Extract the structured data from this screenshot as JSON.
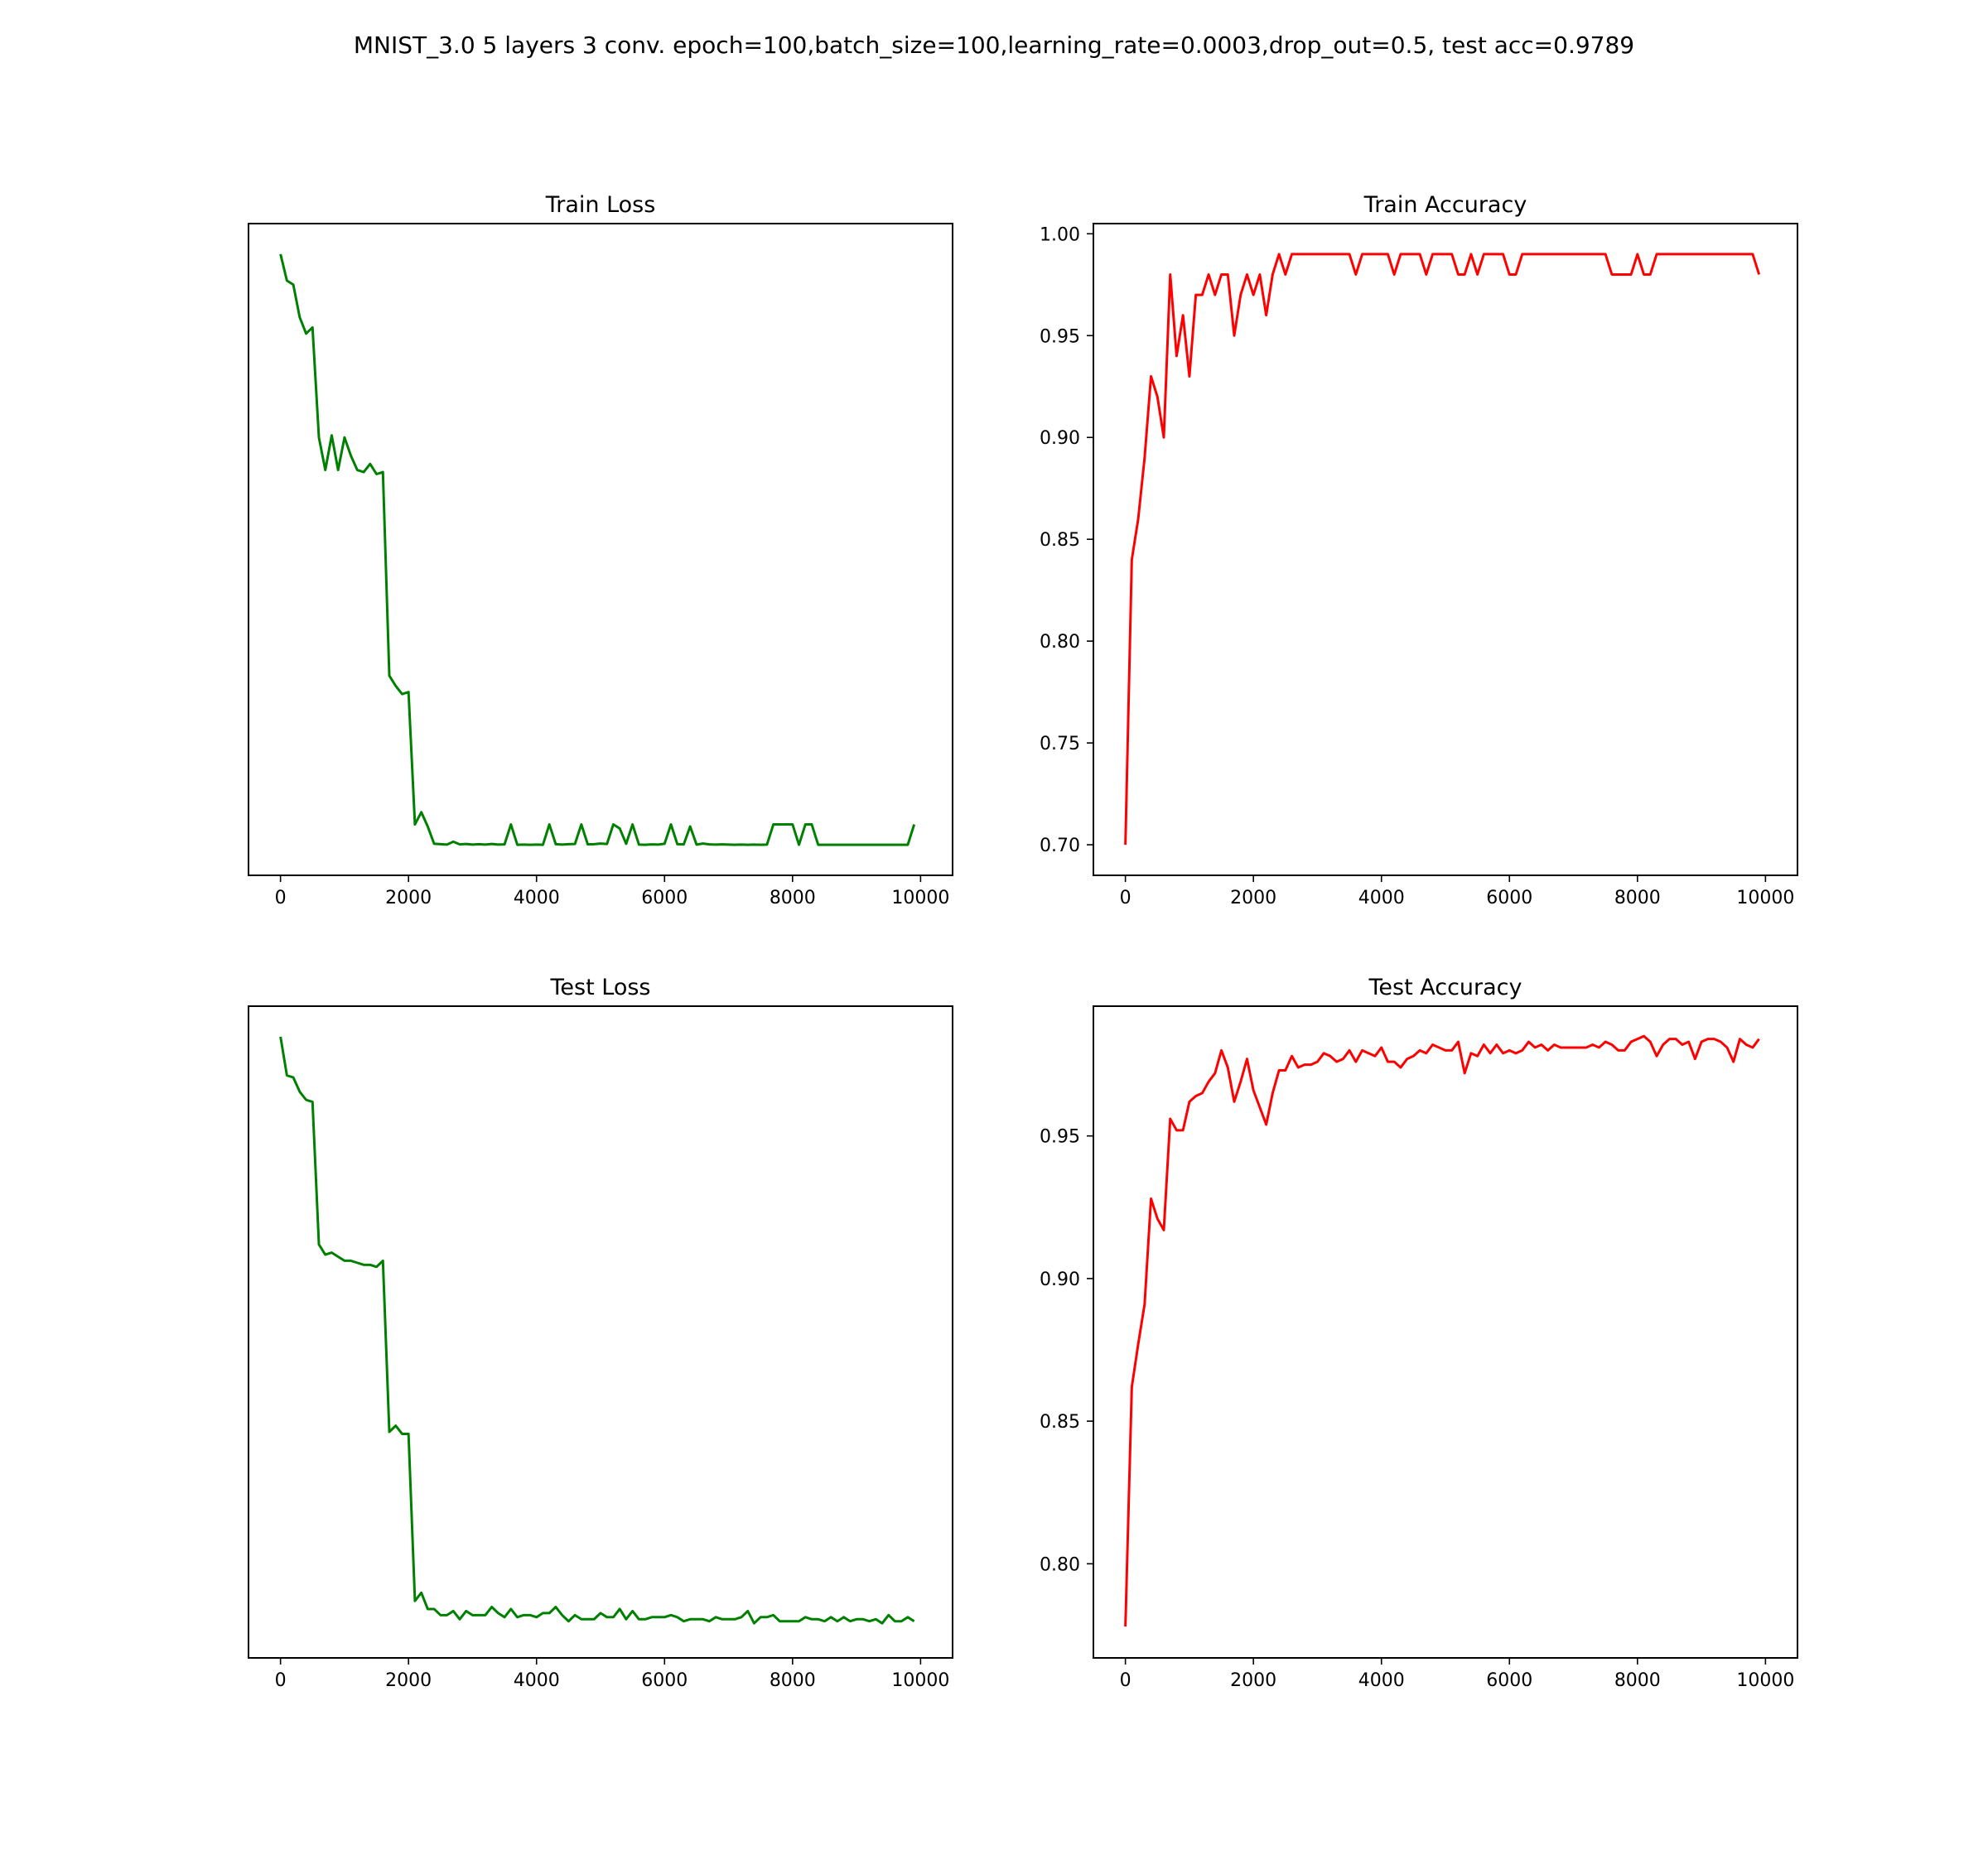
{
  "figure": {
    "suptitle": "MNIST_3.0 5 layers 3 conv. epoch=100,batch_size=100,learning_rate=0.0003,drop_out=0.5, test acc=0.9789"
  },
  "chart_data": [
    {
      "type": "line",
      "title": "Train Loss",
      "xlabel": "",
      "ylabel": "",
      "color": "#008000",
      "xlim": [
        -500,
        10500
      ],
      "ylim": [
        -0.015,
        0.305
      ],
      "xticks": [
        0,
        2000,
        4000,
        6000,
        8000,
        10000
      ],
      "yticks": [],
      "grid": false,
      "x": [
        0,
        100,
        200,
        300,
        400,
        500,
        600,
        700,
        800,
        900,
        1000,
        1100,
        1200,
        1300,
        1400,
        1500,
        1600,
        1700,
        1800,
        1900,
        2000,
        2100,
        2200,
        2300,
        2400,
        2500,
        2600,
        2700,
        2800,
        2900,
        3000,
        3100,
        3200,
        3300,
        3400,
        3500,
        3600,
        3700,
        3800,
        3900,
        4000,
        4100,
        4200,
        4300,
        4400,
        4500,
        4600,
        4700,
        4800,
        4900,
        5000,
        5100,
        5200,
        5300,
        5400,
        5500,
        5600,
        5700,
        5800,
        5900,
        6000,
        6100,
        6200,
        6300,
        6400,
        6500,
        6600,
        6700,
        6800,
        6900,
        7000,
        7100,
        7200,
        7300,
        7400,
        7500,
        7600,
        7700,
        7800,
        7900,
        8000,
        8100,
        8200,
        8300,
        8400,
        8500,
        8600,
        8700,
        8800,
        8900,
        9000,
        9100,
        9200,
        9300,
        9400,
        9500,
        9600,
        9700,
        9800,
        9900
      ],
      "values": [
        0.29,
        0.277,
        0.275,
        0.259,
        0.251,
        0.254,
        0.2,
        0.184,
        0.201,
        0.184,
        0.2,
        0.191,
        0.184,
        0.183,
        0.187,
        0.182,
        0.183,
        0.083,
        0.078,
        0.074,
        0.075,
        0.01,
        0.016,
        0.009,
        0.0005,
        0.0003,
        0.0001,
        0.0015,
        0.0002,
        0.0004,
        0.0001,
        0.0003,
        0.0001,
        0.0004,
        0.0001,
        0.0002,
        0.01,
        0.0,
        0.0001,
        0.0,
        0.0001,
        0.0,
        0.01,
        0.0003,
        0.0001,
        0.0003,
        0.0004,
        0.01,
        0.0002,
        0.0003,
        0.0006,
        0.0004,
        0.01,
        0.008,
        0.0005,
        0.01,
        0.0001,
        0.0,
        0.0002,
        0.0001,
        0.0005,
        0.01,
        0.0003,
        0.0002,
        0.009,
        0.0001,
        0.0006,
        0.0002,
        0.0001,
        0.0002,
        0.0001,
        0.0,
        0.0001,
        0.0,
        0.0001,
        0.0,
        0.0001,
        0.01,
        0.01,
        0.01,
        0.01,
        0.0,
        0.01,
        0.01,
        0.0,
        0.0,
        0.0,
        0.0,
        0.0,
        0.0,
        0.0,
        0.0,
        0.0,
        0.0,
        0.0,
        0.0,
        0.0,
        0.0,
        0.0,
        0.01
      ]
    },
    {
      "type": "line",
      "title": "Train Accuracy",
      "xlabel": "",
      "ylabel": "",
      "color": "#ff0000",
      "xlim": [
        -500,
        10500
      ],
      "ylim": [
        0.685,
        1.005
      ],
      "xticks": [
        0,
        2000,
        4000,
        6000,
        8000,
        10000
      ],
      "yticks": [
        0.7,
        0.75,
        0.8,
        0.85,
        0.9,
        0.95,
        1.0
      ],
      "ytick_labels": [
        "0.70",
        "0.75",
        "0.80",
        "0.85",
        "0.90",
        "0.95",
        "1.00"
      ],
      "grid": false,
      "x": [
        0,
        100,
        200,
        300,
        400,
        500,
        600,
        700,
        800,
        900,
        1000,
        1100,
        1200,
        1300,
        1400,
        1500,
        1600,
        1700,
        1800,
        1900,
        2000,
        2100,
        2200,
        2300,
        2400,
        2500,
        2600,
        2700,
        2800,
        2900,
        3000,
        3100,
        3200,
        3300,
        3400,
        3500,
        3600,
        3700,
        3800,
        3900,
        4000,
        4100,
        4200,
        4300,
        4400,
        4500,
        4600,
        4700,
        4800,
        4900,
        5000,
        5100,
        5200,
        5300,
        5400,
        5500,
        5600,
        5700,
        5800,
        5900,
        6000,
        6100,
        6200,
        6300,
        6400,
        6500,
        6600,
        6700,
        6800,
        6900,
        7000,
        7100,
        7200,
        7300,
        7400,
        7500,
        7600,
        7700,
        7800,
        7900,
        8000,
        8100,
        8200,
        8300,
        8400,
        8500,
        8600,
        8700,
        8800,
        8900,
        9000,
        9100,
        9200,
        9300,
        9400,
        9500,
        9600,
        9700,
        9800,
        9900
      ],
      "values": [
        0.7,
        0.84,
        0.86,
        0.89,
        0.93,
        0.92,
        0.9,
        0.98,
        0.94,
        0.96,
        0.93,
        0.97,
        0.97,
        0.98,
        0.97,
        0.98,
        0.98,
        0.95,
        0.97,
        0.98,
        0.97,
        0.98,
        0.96,
        0.98,
        0.99,
        0.98,
        0.99,
        0.99,
        0.99,
        0.99,
        0.99,
        0.99,
        0.99,
        0.99,
        0.99,
        0.99,
        0.98,
        0.99,
        0.99,
        0.99,
        0.99,
        0.99,
        0.98,
        0.99,
        0.99,
        0.99,
        0.99,
        0.98,
        0.99,
        0.99,
        0.99,
        0.99,
        0.98,
        0.98,
        0.99,
        0.98,
        0.99,
        0.99,
        0.99,
        0.99,
        0.98,
        0.98,
        0.99,
        0.99,
        0.99,
        0.99,
        0.99,
        0.99,
        0.99,
        0.99,
        0.99,
        0.99,
        0.99,
        0.99,
        0.99,
        0.99,
        0.98,
        0.98,
        0.98,
        0.98,
        0.99,
        0.98,
        0.98,
        0.99,
        0.99,
        0.99,
        0.99,
        0.99,
        0.99,
        0.99,
        0.99,
        0.99,
        0.99,
        0.99,
        0.99,
        0.99,
        0.99,
        0.99,
        0.99,
        0.98
      ]
    },
    {
      "type": "line",
      "title": "Test Loss",
      "xlabel": "",
      "ylabel": "",
      "color": "#008000",
      "xlim": [
        -500,
        10500
      ],
      "ylim": [
        -0.015,
        0.305
      ],
      "xticks": [
        0,
        2000,
        4000,
        6000,
        8000,
        10000
      ],
      "yticks": [],
      "grid": false,
      "x": [
        0,
        100,
        200,
        300,
        400,
        500,
        600,
        700,
        800,
        900,
        1000,
        1100,
        1200,
        1300,
        1400,
        1500,
        1600,
        1700,
        1800,
        1900,
        2000,
        2100,
        2200,
        2300,
        2400,
        2500,
        2600,
        2700,
        2800,
        2900,
        3000,
        3100,
        3200,
        3300,
        3400,
        3500,
        3600,
        3700,
        3800,
        3900,
        4000,
        4100,
        4200,
        4300,
        4400,
        4500,
        4600,
        4700,
        4800,
        4900,
        5000,
        5100,
        5200,
        5300,
        5400,
        5500,
        5600,
        5700,
        5800,
        5900,
        6000,
        6100,
        6200,
        6300,
        6400,
        6500,
        6600,
        6700,
        6800,
        6900,
        7000,
        7100,
        7200,
        7300,
        7400,
        7500,
        7600,
        7700,
        7800,
        7900,
        8000,
        8100,
        8200,
        8300,
        8400,
        8500,
        8600,
        8700,
        8800,
        8900,
        9000,
        9100,
        9200,
        9300,
        9400,
        9500,
        9600,
        9700,
        9800,
        9900
      ],
      "values": [
        0.29,
        0.271,
        0.27,
        0.263,
        0.259,
        0.258,
        0.188,
        0.183,
        0.184,
        0.182,
        0.18,
        0.18,
        0.179,
        0.178,
        0.178,
        0.177,
        0.18,
        0.096,
        0.099,
        0.095,
        0.095,
        0.013,
        0.017,
        0.009,
        0.009,
        0.006,
        0.006,
        0.008,
        0.004,
        0.008,
        0.006,
        0.006,
        0.006,
        0.01,
        0.007,
        0.005,
        0.009,
        0.005,
        0.006,
        0.006,
        0.005,
        0.007,
        0.007,
        0.01,
        0.006,
        0.003,
        0.006,
        0.004,
        0.004,
        0.004,
        0.007,
        0.005,
        0.005,
        0.009,
        0.004,
        0.008,
        0.004,
        0.004,
        0.005,
        0.005,
        0.005,
        0.006,
        0.005,
        0.003,
        0.004,
        0.004,
        0.004,
        0.003,
        0.005,
        0.004,
        0.004,
        0.004,
        0.005,
        0.008,
        0.002,
        0.005,
        0.005,
        0.006,
        0.003,
        0.003,
        0.003,
        0.003,
        0.005,
        0.004,
        0.004,
        0.003,
        0.005,
        0.003,
        0.005,
        0.003,
        0.004,
        0.004,
        0.003,
        0.004,
        0.002,
        0.006,
        0.003,
        0.003,
        0.005,
        0.003
      ]
    },
    {
      "type": "line",
      "title": "Test Accuracy",
      "xlabel": "",
      "ylabel": "",
      "color": "#ff0000",
      "xlim": [
        -500,
        10500
      ],
      "ylim": [
        0.767,
        0.9955
      ],
      "xticks": [
        0,
        2000,
        4000,
        6000,
        8000,
        10000
      ],
      "yticks": [
        0.8,
        0.85,
        0.9,
        0.95
      ],
      "ytick_labels": [
        "0.80",
        "0.85",
        "0.90",
        "0.95"
      ],
      "grid": false,
      "x": [
        0,
        100,
        200,
        300,
        400,
        500,
        600,
        700,
        800,
        900,
        1000,
        1100,
        1200,
        1300,
        1400,
        1500,
        1600,
        1700,
        1800,
        1900,
        2000,
        2100,
        2200,
        2300,
        2400,
        2500,
        2600,
        2700,
        2800,
        2900,
        3000,
        3100,
        3200,
        3300,
        3400,
        3500,
        3600,
        3700,
        3800,
        3900,
        4000,
        4100,
        4200,
        4300,
        4400,
        4500,
        4600,
        4700,
        4800,
        4900,
        5000,
        5100,
        5200,
        5300,
        5400,
        5500,
        5600,
        5700,
        5800,
        5900,
        6000,
        6100,
        6200,
        6300,
        6400,
        6500,
        6600,
        6700,
        6800,
        6900,
        7000,
        7100,
        7200,
        7300,
        7400,
        7500,
        7600,
        7700,
        7800,
        7900,
        8000,
        8100,
        8200,
        8300,
        8400,
        8500,
        8600,
        8700,
        8800,
        8900,
        9000,
        9100,
        9200,
        9300,
        9400,
        9500,
        9600,
        9700,
        9800,
        9900
      ],
      "values": [
        0.778,
        0.862,
        0.877,
        0.891,
        0.928,
        0.921,
        0.917,
        0.956,
        0.952,
        0.952,
        0.962,
        0.964,
        0.965,
        0.969,
        0.972,
        0.98,
        0.974,
        0.962,
        0.969,
        0.977,
        0.966,
        0.96,
        0.954,
        0.965,
        0.973,
        0.973,
        0.978,
        0.974,
        0.975,
        0.975,
        0.976,
        0.979,
        0.978,
        0.976,
        0.977,
        0.98,
        0.976,
        0.98,
        0.979,
        0.978,
        0.981,
        0.976,
        0.976,
        0.974,
        0.977,
        0.978,
        0.98,
        0.979,
        0.982,
        0.981,
        0.98,
        0.98,
        0.983,
        0.972,
        0.979,
        0.978,
        0.982,
        0.979,
        0.982,
        0.979,
        0.98,
        0.979,
        0.98,
        0.983,
        0.981,
        0.982,
        0.98,
        0.982,
        0.981,
        0.981,
        0.981,
        0.981,
        0.981,
        0.982,
        0.981,
        0.983,
        0.982,
        0.98,
        0.98,
        0.983,
        0.984,
        0.985,
        0.983,
        0.978,
        0.982,
        0.984,
        0.984,
        0.982,
        0.983,
        0.977,
        0.983,
        0.984,
        0.984,
        0.983,
        0.981,
        0.976,
        0.984,
        0.982,
        0.981,
        0.984
      ]
    }
  ]
}
